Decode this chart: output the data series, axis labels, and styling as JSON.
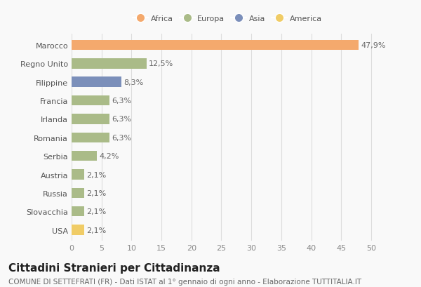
{
  "categories": [
    "Marocco",
    "Regno Unito",
    "Filippine",
    "Francia",
    "Irlanda",
    "Romania",
    "Serbia",
    "Austria",
    "Russia",
    "Slovacchia",
    "USA"
  ],
  "values": [
    47.9,
    12.5,
    8.3,
    6.3,
    6.3,
    6.3,
    4.2,
    2.1,
    2.1,
    2.1,
    2.1
  ],
  "labels": [
    "47,9%",
    "12,5%",
    "8,3%",
    "6,3%",
    "6,3%",
    "6,3%",
    "4,2%",
    "2,1%",
    "2,1%",
    "2,1%",
    "2,1%"
  ],
  "colors": [
    "#F4A96D",
    "#AABB88",
    "#7B8FBA",
    "#AABB88",
    "#AABB88",
    "#AABB88",
    "#AABB88",
    "#AABB88",
    "#AABB88",
    "#AABB88",
    "#F0CC66"
  ],
  "legend_labels": [
    "Africa",
    "Europa",
    "Asia",
    "America"
  ],
  "legend_colors": [
    "#F4A96D",
    "#AABB88",
    "#7B8FBA",
    "#F0CC66"
  ],
  "title": "Cittadini Stranieri per Cittadinanza",
  "subtitle": "COMUNE DI SETTEFRATI (FR) - Dati ISTAT al 1° gennaio di ogni anno - Elaborazione TUTTITALIA.IT",
  "xlabel_ticks": [
    0,
    5,
    10,
    15,
    20,
    25,
    30,
    35,
    40,
    45,
    50
  ],
  "xlim": [
    0,
    52
  ],
  "background_color": "#f9f9f9",
  "grid_color": "#dddddd",
  "bar_height": 0.55,
  "label_fontsize": 8,
  "tick_fontsize": 8,
  "title_fontsize": 11,
  "subtitle_fontsize": 7.5
}
